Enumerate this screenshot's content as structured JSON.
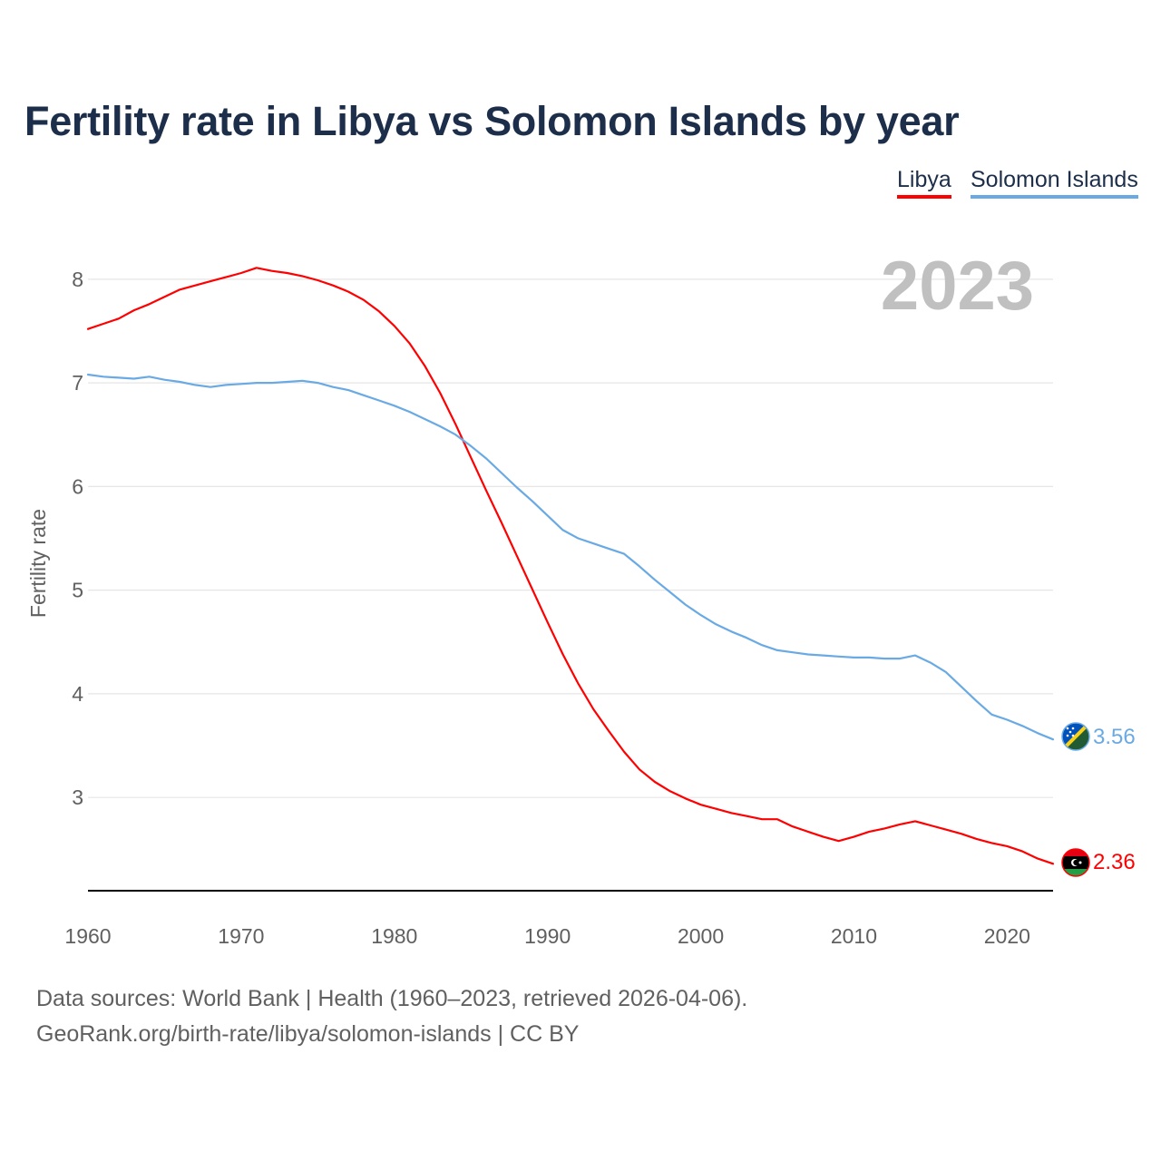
{
  "title": "Fertility rate in Libya vs Solomon Islands by year",
  "legend": [
    {
      "label": "Libya",
      "color": "#ff0000"
    },
    {
      "label": "Solomon Islands",
      "color": "#6aaae4"
    }
  ],
  "year_watermark": "2023",
  "footer": {
    "line1": "Data sources: World Bank | Health (1960–2023, retrieved 2026-04-06).",
    "line2": "GeoRank.org/birth-rate/libya/solomon-islands | CC BY"
  },
  "chart_data": {
    "type": "line",
    "title": "Fertility rate in Libya vs Solomon Islands by year",
    "xlabel": "",
    "ylabel": "Fertility rate",
    "xlim": [
      1960,
      2023
    ],
    "ylim": [
      2.1,
      8.2
    ],
    "x_ticks": [
      1960,
      1970,
      1980,
      1990,
      2000,
      2010,
      2020
    ],
    "y_ticks": [
      3,
      4,
      5,
      6,
      7,
      8
    ],
    "grid": true,
    "x": [
      1960,
      1961,
      1962,
      1963,
      1964,
      1965,
      1966,
      1967,
      1968,
      1969,
      1970,
      1971,
      1972,
      1973,
      1974,
      1975,
      1976,
      1977,
      1978,
      1979,
      1980,
      1981,
      1982,
      1983,
      1984,
      1985,
      1986,
      1987,
      1988,
      1989,
      1990,
      1991,
      1992,
      1993,
      1994,
      1995,
      1996,
      1997,
      1998,
      1999,
      2000,
      2001,
      2002,
      2003,
      2004,
      2005,
      2006,
      2007,
      2008,
      2009,
      2010,
      2011,
      2012,
      2013,
      2014,
      2015,
      2016,
      2017,
      2018,
      2019,
      2020,
      2021,
      2022,
      2023
    ],
    "series": [
      {
        "name": "Libya",
        "color": "#ff0000",
        "end_label": "2.36",
        "values": [
          7.52,
          7.57,
          7.62,
          7.7,
          7.76,
          7.83,
          7.9,
          7.94,
          7.98,
          8.02,
          8.06,
          8.11,
          8.08,
          8.06,
          8.03,
          7.99,
          7.94,
          7.88,
          7.8,
          7.69,
          7.55,
          7.38,
          7.16,
          6.9,
          6.6,
          6.28,
          5.96,
          5.65,
          5.33,
          5.01,
          4.69,
          4.38,
          4.1,
          3.85,
          3.64,
          3.44,
          3.27,
          3.15,
          3.06,
          2.99,
          2.93,
          2.89,
          2.85,
          2.82,
          2.79,
          2.79,
          2.72,
          2.67,
          2.62,
          2.58,
          2.62,
          2.67,
          2.7,
          2.74,
          2.77,
          2.73,
          2.69,
          2.65,
          2.6,
          2.56,
          2.53,
          2.48,
          2.41,
          2.36
        ]
      },
      {
        "name": "Solomon Islands",
        "color": "#6aaae4",
        "end_label": "3.56",
        "values": [
          7.08,
          7.06,
          7.05,
          7.04,
          7.06,
          7.03,
          7.01,
          6.98,
          6.96,
          6.98,
          6.99,
          7.0,
          7.0,
          7.01,
          7.02,
          7.0,
          6.96,
          6.93,
          6.88,
          6.83,
          6.78,
          6.72,
          6.65,
          6.58,
          6.5,
          6.39,
          6.27,
          6.13,
          5.99,
          5.86,
          5.72,
          5.58,
          5.5,
          5.45,
          5.4,
          5.35,
          5.23,
          5.1,
          4.98,
          4.86,
          4.76,
          4.67,
          4.6,
          4.54,
          4.47,
          4.42,
          4.4,
          4.38,
          4.37,
          4.36,
          4.35,
          4.35,
          4.34,
          4.34,
          4.37,
          4.3,
          4.21,
          4.07,
          3.93,
          3.8,
          3.75,
          3.69,
          3.62,
          3.56
        ]
      }
    ]
  }
}
